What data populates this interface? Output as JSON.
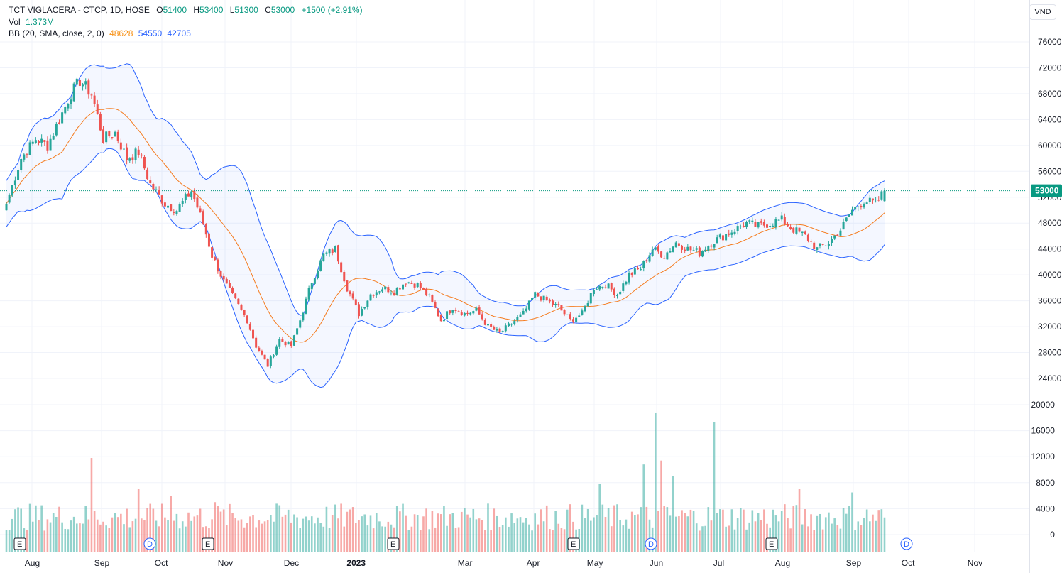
{
  "legend": {
    "symbol": "TCT VIGLACERA - CTCP, 1D, HOSE",
    "o_label": "O",
    "o_val": "51400",
    "h_label": "H",
    "h_val": "53400",
    "l_label": "L",
    "l_val": "51300",
    "c_label": "C",
    "c_val": "53000",
    "change": "+1500 (+2.91%)",
    "vol_label": "Vol",
    "vol_val": "1.373M",
    "bb_label": "BB (20, SMA, close, 2, 0)",
    "bb_mid": "48628",
    "bb_up": "54550",
    "bb_low": "42705"
  },
  "currency": "VND",
  "last_price": "53000",
  "colors": {
    "up": "#26a69a",
    "down": "#ef5350",
    "bb_band": "#2962ff",
    "bb_mid": "#f57c1f",
    "band_fill": "#2962ff"
  },
  "chart_data": {
    "type": "candlestick",
    "title": "TCT VIGLACERA - CTCP, 1D, HOSE",
    "y_axis_ticks": [
      "76000",
      "72000",
      "68000",
      "64000",
      "60000",
      "56000",
      "52000",
      "48000",
      "44000",
      "40000",
      "36000",
      "32000",
      "28000",
      "24000"
    ],
    "volume_axis_ticks": [
      "20000",
      "16000",
      "12000",
      "8000",
      "4000",
      "0"
    ],
    "x_axis_ticks": [
      "Aug",
      "Sep",
      "Oct",
      "Nov",
      "Dec",
      "2023",
      "Mar",
      "Apr",
      "May",
      "Jun",
      "Jul",
      "Aug",
      "Sep",
      "Oct",
      "Nov"
    ],
    "event_markers": [
      "E",
      "D",
      "E",
      "E",
      "E",
      "D",
      "E",
      "D"
    ],
    "price_anchors": [
      {
        "i": 0,
        "c": 51000
      },
      {
        "i": 5,
        "c": 58000
      },
      {
        "i": 10,
        "c": 61000
      },
      {
        "i": 14,
        "c": 60000
      },
      {
        "i": 18,
        "c": 64000
      },
      {
        "i": 22,
        "c": 68000
      },
      {
        "i": 25,
        "c": 70000
      },
      {
        "i": 29,
        "c": 68000
      },
      {
        "i": 33,
        "c": 61000
      },
      {
        "i": 37,
        "c": 62000
      },
      {
        "i": 41,
        "c": 58000
      },
      {
        "i": 45,
        "c": 59000
      },
      {
        "i": 49,
        "c": 54000
      },
      {
        "i": 54,
        "c": 51000
      },
      {
        "i": 58,
        "c": 50000
      },
      {
        "i": 63,
        "c": 53000
      },
      {
        "i": 67,
        "c": 48000
      },
      {
        "i": 70,
        "c": 43000
      },
      {
        "i": 74,
        "c": 39000
      },
      {
        "i": 78,
        "c": 36000
      },
      {
        "i": 82,
        "c": 33000
      },
      {
        "i": 85,
        "c": 29000
      },
      {
        "i": 89,
        "c": 26000
      },
      {
        "i": 93,
        "c": 30000
      },
      {
        "i": 97,
        "c": 29000
      },
      {
        "i": 100,
        "c": 33000
      },
      {
        "i": 104,
        "c": 39000
      },
      {
        "i": 108,
        "c": 43000
      },
      {
        "i": 112,
        "c": 44000
      },
      {
        "i": 116,
        "c": 38000
      },
      {
        "i": 120,
        "c": 34000
      },
      {
        "i": 124,
        "c": 37000
      },
      {
        "i": 128,
        "c": 38000
      },
      {
        "i": 132,
        "c": 37500
      },
      {
        "i": 136,
        "c": 39000
      },
      {
        "i": 140,
        "c": 38500
      },
      {
        "i": 144,
        "c": 36500
      },
      {
        "i": 148,
        "c": 33000
      },
      {
        "i": 152,
        "c": 35000
      },
      {
        "i": 156,
        "c": 34000
      },
      {
        "i": 160,
        "c": 34500
      },
      {
        "i": 164,
        "c": 32000
      },
      {
        "i": 168,
        "c": 31000
      },
      {
        "i": 172,
        "c": 32500
      },
      {
        "i": 176,
        "c": 34000
      },
      {
        "i": 180,
        "c": 37000
      },
      {
        "i": 184,
        "c": 36000
      },
      {
        "i": 188,
        "c": 35000
      },
      {
        "i": 192,
        "c": 33000
      },
      {
        "i": 196,
        "c": 34000
      },
      {
        "i": 200,
        "c": 38000
      },
      {
        "i": 204,
        "c": 38500
      },
      {
        "i": 208,
        "c": 37000
      },
      {
        "i": 212,
        "c": 40000
      },
      {
        "i": 216,
        "c": 41000
      },
      {
        "i": 220,
        "c": 44000
      },
      {
        "i": 224,
        "c": 43000
      },
      {
        "i": 228,
        "c": 45000
      },
      {
        "i": 232,
        "c": 44000
      },
      {
        "i": 236,
        "c": 43500
      },
      {
        "i": 240,
        "c": 45000
      },
      {
        "i": 244,
        "c": 46000
      },
      {
        "i": 248,
        "c": 47000
      },
      {
        "i": 252,
        "c": 48000
      },
      {
        "i": 256,
        "c": 47500
      },
      {
        "i": 260,
        "c": 48000
      },
      {
        "i": 264,
        "c": 48500
      },
      {
        "i": 268,
        "c": 47000
      },
      {
        "i": 272,
        "c": 46000
      },
      {
        "i": 276,
        "c": 44000
      },
      {
        "i": 280,
        "c": 45000
      },
      {
        "i": 284,
        "c": 47000
      },
      {
        "i": 288,
        "c": 50000
      },
      {
        "i": 292,
        "c": 51500
      },
      {
        "i": 296,
        "c": 51000
      },
      {
        "i": 299,
        "c": 53000
      }
    ],
    "volume_spikes": [
      {
        "i": 29,
        "v": 11800
      },
      {
        "i": 45,
        "v": 7000
      },
      {
        "i": 56,
        "v": 6000
      },
      {
        "i": 71,
        "v": 5000
      },
      {
        "i": 202,
        "v": 7800
      },
      {
        "i": 217,
        "v": 10800
      },
      {
        "i": 221,
        "v": 18800
      },
      {
        "i": 223,
        "v": 11400
      },
      {
        "i": 227,
        "v": 9000
      },
      {
        "i": 241,
        "v": 17300
      },
      {
        "i": 270,
        "v": 7000
      },
      {
        "i": 288,
        "v": 6500
      }
    ],
    "last": {
      "open": 51400,
      "high": 53400,
      "low": 51300,
      "close": 53000
    },
    "bb_last": {
      "mid": 48628,
      "upper": 54550,
      "lower": 42705
    }
  }
}
